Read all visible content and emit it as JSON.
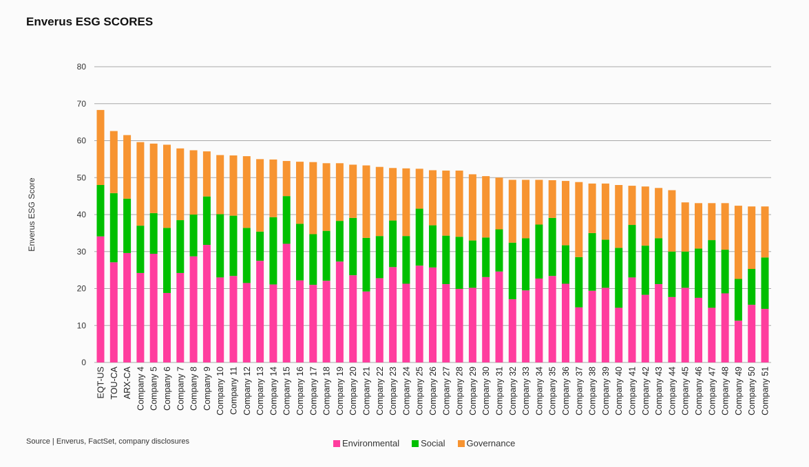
{
  "chart_data": {
    "type": "bar",
    "stacked": true,
    "title": "Enverus ESG SCORES",
    "ylabel": "Enverus ESG Score",
    "xlabel": "",
    "ylim": [
      0,
      80
    ],
    "yticks": [
      0,
      10,
      20,
      30,
      40,
      50,
      60,
      70,
      80
    ],
    "grid": true,
    "legend_position": "bottom",
    "source": "Source | Enverus, FactSet, company disclosures",
    "categories": [
      "EQT-US",
      "TOU-CA",
      "ARX-CA",
      "Company 4",
      "Company 5",
      "Company 6",
      "Company 7",
      "Company 8",
      "Company 9",
      "Company 10",
      "Company 11",
      "Company 12",
      "Company 13",
      "Company 14",
      "Company 15",
      "Company 16",
      "Company 17",
      "Company 18",
      "Company 19",
      "Company 20",
      "Company 21",
      "Company 22",
      "Company 23",
      "Company 24",
      "Company 25",
      "Company 26",
      "Company 27",
      "Company 28",
      "Company 29",
      "Company 30",
      "Company 31",
      "Company 32",
      "Company 33",
      "Company 34",
      "Company 35",
      "Company 36",
      "Company 37",
      "Company 38",
      "Company 39",
      "Company 40",
      "Company 41",
      "Company 42",
      "Company 43",
      "Company 44",
      "Company 45",
      "Company 46",
      "Company 47",
      "Company 48",
      "Company 49",
      "Company 50",
      "Company 51"
    ],
    "series": [
      {
        "name": "Environmental",
        "color": "#ff3d9e",
        "values": [
          34.1,
          27.1,
          29.6,
          24.2,
          29.4,
          18.8,
          24.2,
          28.7,
          31.8,
          23.0,
          23.4,
          21.5,
          27.5,
          21.1,
          32.1,
          22.2,
          21.0,
          22.1,
          27.3,
          23.6,
          19.2,
          22.8,
          25.8,
          21.3,
          26.2,
          25.7,
          21.2,
          19.9,
          20.2,
          23.1,
          24.6,
          17.1,
          19.5,
          22.7,
          23.4,
          21.3,
          14.9,
          19.4,
          20.2,
          14.8,
          23.0,
          18.3,
          21.2,
          17.7,
          20.2,
          17.5,
          14.8,
          18.7,
          11.3,
          15.6,
          14.5
        ]
      },
      {
        "name": "Social",
        "color": "#00bf00",
        "values": [
          13.9,
          18.7,
          14.7,
          12.8,
          11.0,
          17.6,
          14.3,
          11.3,
          13.1,
          17.1,
          16.3,
          14.9,
          7.9,
          18.2,
          12.9,
          15.3,
          13.7,
          13.5,
          11.0,
          15.5,
          14.5,
          11.4,
          12.6,
          12.9,
          15.4,
          11.4,
          13.1,
          14.1,
          12.8,
          10.7,
          11.4,
          15.3,
          14.1,
          14.6,
          15.7,
          10.4,
          13.6,
          15.6,
          13.0,
          16.2,
          14.2,
          13.3,
          12.4,
          12.3,
          9.8,
          13.3,
          18.3,
          11.8,
          11.3,
          9.7,
          13.9
        ]
      },
      {
        "name": "Governance",
        "color": "#f79431",
        "values": [
          20.3,
          16.8,
          17.2,
          22.6,
          18.8,
          22.5,
          19.4,
          17.4,
          12.2,
          16.0,
          16.3,
          19.4,
          19.6,
          15.6,
          9.5,
          16.8,
          19.5,
          18.3,
          15.6,
          14.4,
          19.6,
          18.7,
          14.2,
          18.3,
          10.8,
          14.9,
          17.6,
          17.9,
          17.9,
          16.6,
          14.0,
          17.0,
          15.8,
          12.1,
          10.2,
          17.4,
          20.3,
          13.4,
          15.2,
          17.0,
          10.6,
          16.0,
          13.6,
          16.6,
          13.3,
          12.3,
          10.0,
          12.6,
          19.8,
          16.9,
          13.8
        ]
      }
    ]
  }
}
